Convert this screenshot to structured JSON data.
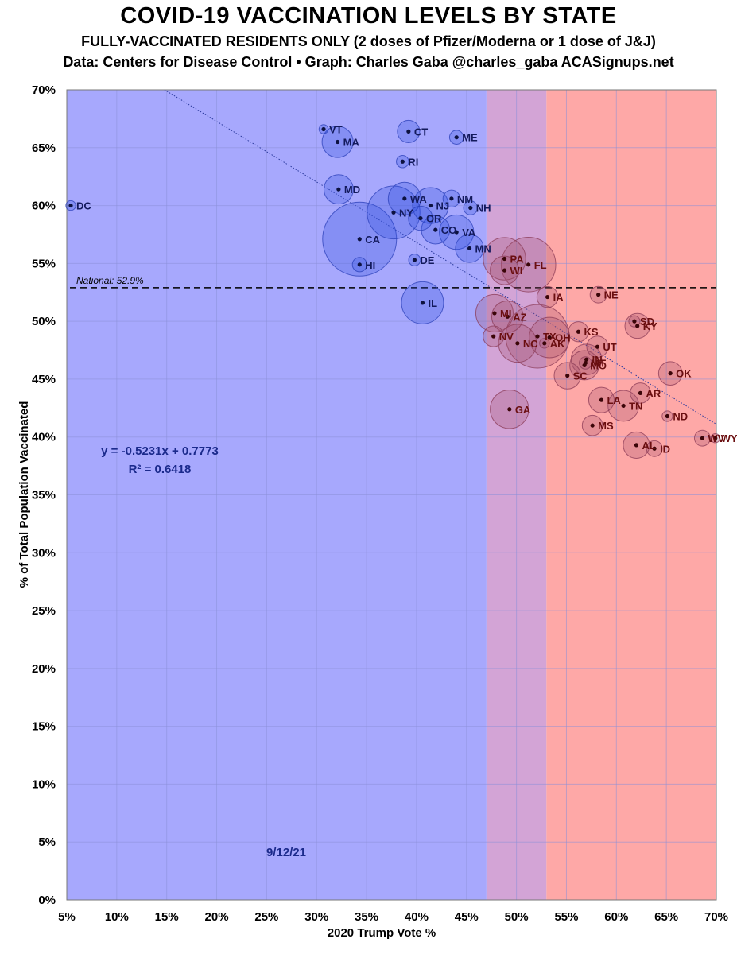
{
  "header": {
    "title": "COVID-19 VACCINATION LEVELS BY STATE",
    "subtitle": "FULLY-VACCINATED RESIDENTS ONLY (2 doses of Pfizer/Moderna or 1 dose of J&J)",
    "credit": "Data: Centers for Disease Control • Graph: Charles Gaba  @charles_gaba  ACASignups.net"
  },
  "chart_data": {
    "type": "scatter",
    "title": "COVID-19 VACCINATION LEVELS BY STATE",
    "xlabel": "2020 Trump Vote %",
    "ylabel": "% of Total Population Vaccinated",
    "xlim": [
      5,
      70
    ],
    "ylim": [
      0,
      70
    ],
    "x_ticks": [
      "5%",
      "10%",
      "15%",
      "20%",
      "25%",
      "30%",
      "35%",
      "40%",
      "45%",
      "50%",
      "55%",
      "60%",
      "65%",
      "70%"
    ],
    "y_ticks": [
      "0%",
      "5%",
      "10%",
      "15%",
      "20%",
      "25%",
      "30%",
      "35%",
      "40%",
      "45%",
      "50%",
      "55%",
      "60%",
      "65%",
      "70%"
    ],
    "grid": true,
    "regions": [
      {
        "from": 5,
        "to": 47,
        "color": "#a7a8fd"
      },
      {
        "from": 47,
        "to": 53,
        "color": "#d3a4d6"
      },
      {
        "from": 53,
        "to": 70,
        "color": "#fea8a7"
      }
    ],
    "national_line": {
      "y": 52.9,
      "label": "National: 52.9%"
    },
    "trendline": {
      "slope": -0.5231,
      "intercept": 0.7773
    },
    "equation_text": "y = -0.5231x + 0.7773",
    "r2_text": "R² = 0.6418",
    "date_text": "9/12/21",
    "colors": {
      "dem": "#3050e0",
      "rep": "#a0506a",
      "dem_label": "#131a5c",
      "rep_label": "#6a0e10"
    },
    "points": [
      {
        "label": "DC",
        "x": 5.4,
        "y": 60.0,
        "pop": 0.7,
        "party": "D"
      },
      {
        "label": "VT",
        "x": 30.7,
        "y": 66.6,
        "pop": 0.6,
        "party": "D"
      },
      {
        "label": "MA",
        "x": 32.1,
        "y": 65.5,
        "pop": 7.0,
        "party": "D"
      },
      {
        "label": "CT",
        "x": 39.2,
        "y": 66.4,
        "pop": 3.6,
        "party": "D"
      },
      {
        "label": "ME",
        "x": 44.0,
        "y": 65.9,
        "pop": 1.4,
        "party": "D"
      },
      {
        "label": "RI",
        "x": 38.6,
        "y": 63.8,
        "pop": 1.1,
        "party": "D"
      },
      {
        "label": "MD",
        "x": 32.2,
        "y": 61.4,
        "pop": 6.2,
        "party": "D"
      },
      {
        "label": "WA",
        "x": 38.8,
        "y": 60.6,
        "pop": 7.7,
        "party": "D"
      },
      {
        "label": "NM",
        "x": 43.5,
        "y": 60.6,
        "pop": 2.1,
        "party": "D"
      },
      {
        "label": "NJ",
        "x": 41.4,
        "y": 60.0,
        "pop": 9.3,
        "party": "D"
      },
      {
        "label": "NH",
        "x": 45.4,
        "y": 59.8,
        "pop": 1.4,
        "party": "D"
      },
      {
        "label": "NY",
        "x": 37.7,
        "y": 59.4,
        "pop": 20.2,
        "party": "D"
      },
      {
        "label": "OR",
        "x": 40.4,
        "y": 58.9,
        "pop": 4.2,
        "party": "D"
      },
      {
        "label": "CO",
        "x": 41.9,
        "y": 57.9,
        "pop": 5.8,
        "party": "D"
      },
      {
        "label": "VA",
        "x": 44.0,
        "y": 57.7,
        "pop": 8.6,
        "party": "D"
      },
      {
        "label": "CA",
        "x": 34.3,
        "y": 57.1,
        "pop": 39.5,
        "party": "D"
      },
      {
        "label": "MN",
        "x": 45.3,
        "y": 56.3,
        "pop": 5.7,
        "party": "D"
      },
      {
        "label": "DE",
        "x": 39.8,
        "y": 55.3,
        "pop": 1.0,
        "party": "D"
      },
      {
        "label": "HI",
        "x": 34.3,
        "y": 54.9,
        "pop": 1.5,
        "party": "D"
      },
      {
        "label": "IL",
        "x": 40.6,
        "y": 51.6,
        "pop": 12.8,
        "party": "D"
      },
      {
        "label": "PA",
        "x": 48.8,
        "y": 55.4,
        "pop": 13.0,
        "party": "S"
      },
      {
        "label": "WI",
        "x": 48.8,
        "y": 54.4,
        "pop": 5.9,
        "party": "S"
      },
      {
        "label": "FL",
        "x": 51.2,
        "y": 54.9,
        "pop": 21.5,
        "party": "S"
      },
      {
        "label": "MI",
        "x": 47.8,
        "y": 50.7,
        "pop": 10.1,
        "party": "S"
      },
      {
        "label": "AZ",
        "x": 49.1,
        "y": 50.4,
        "pop": 7.2,
        "party": "S"
      },
      {
        "label": "NV",
        "x": 47.7,
        "y": 48.7,
        "pop": 3.1,
        "party": "S"
      },
      {
        "label": "NC",
        "x": 50.1,
        "y": 48.1,
        "pop": 10.4,
        "party": "S"
      },
      {
        "label": "TX",
        "x": 52.1,
        "y": 48.7,
        "pop": 29.1,
        "party": "S"
      },
      {
        "label": "OH",
        "x": 53.3,
        "y": 48.6,
        "pop": 11.8,
        "party": "S"
      },
      {
        "label": "AK",
        "x": 52.8,
        "y": 48.1,
        "pop": 0.7,
        "party": "S"
      },
      {
        "label": "GA",
        "x": 49.3,
        "y": 42.4,
        "pop": 10.7,
        "party": "S"
      },
      {
        "label": "IA",
        "x": 53.1,
        "y": 52.1,
        "pop": 3.2,
        "party": "R"
      },
      {
        "label": "NE",
        "x": 58.2,
        "y": 52.3,
        "pop": 2.0,
        "party": "R"
      },
      {
        "label": "SD",
        "x": 61.8,
        "y": 50.0,
        "pop": 0.9,
        "party": "R"
      },
      {
        "label": "KY",
        "x": 62.1,
        "y": 49.6,
        "pop": 4.5,
        "party": "R"
      },
      {
        "label": "KS",
        "x": 56.2,
        "y": 49.1,
        "pop": 2.9,
        "party": "R"
      },
      {
        "label": "UT",
        "x": 58.1,
        "y": 47.8,
        "pop": 3.3,
        "party": "R"
      },
      {
        "label": "IN",
        "x": 57.0,
        "y": 46.7,
        "pop": 6.8,
        "party": "R"
      },
      {
        "label": "MT",
        "x": 56.9,
        "y": 46.4,
        "pop": 1.1,
        "party": "R"
      },
      {
        "label": "MO",
        "x": 56.8,
        "y": 46.2,
        "pop": 6.2,
        "party": "R"
      },
      {
        "label": "SC",
        "x": 55.1,
        "y": 45.3,
        "pop": 5.1,
        "party": "R"
      },
      {
        "label": "OK",
        "x": 65.4,
        "y": 45.5,
        "pop": 4.0,
        "party": "R"
      },
      {
        "label": "AR",
        "x": 62.4,
        "y": 43.8,
        "pop": 3.0,
        "party": "R"
      },
      {
        "label": "LA",
        "x": 58.5,
        "y": 43.2,
        "pop": 4.7,
        "party": "R"
      },
      {
        "label": "TN",
        "x": 60.7,
        "y": 42.7,
        "pop": 6.9,
        "party": "R"
      },
      {
        "label": "ND",
        "x": 65.1,
        "y": 41.8,
        "pop": 0.8,
        "party": "R"
      },
      {
        "label": "MS",
        "x": 57.6,
        "y": 41.0,
        "pop": 3.0,
        "party": "R"
      },
      {
        "label": "AL",
        "x": 62.0,
        "y": 39.3,
        "pop": 5.0,
        "party": "R"
      },
      {
        "label": "ID",
        "x": 63.8,
        "y": 39.0,
        "pop": 1.8,
        "party": "R"
      },
      {
        "label": "WV",
        "x": 68.6,
        "y": 39.9,
        "pop": 1.8,
        "party": "R"
      },
      {
        "label": "WY",
        "x": 69.9,
        "y": 39.9,
        "pop": 0.6,
        "party": "R"
      }
    ]
  }
}
